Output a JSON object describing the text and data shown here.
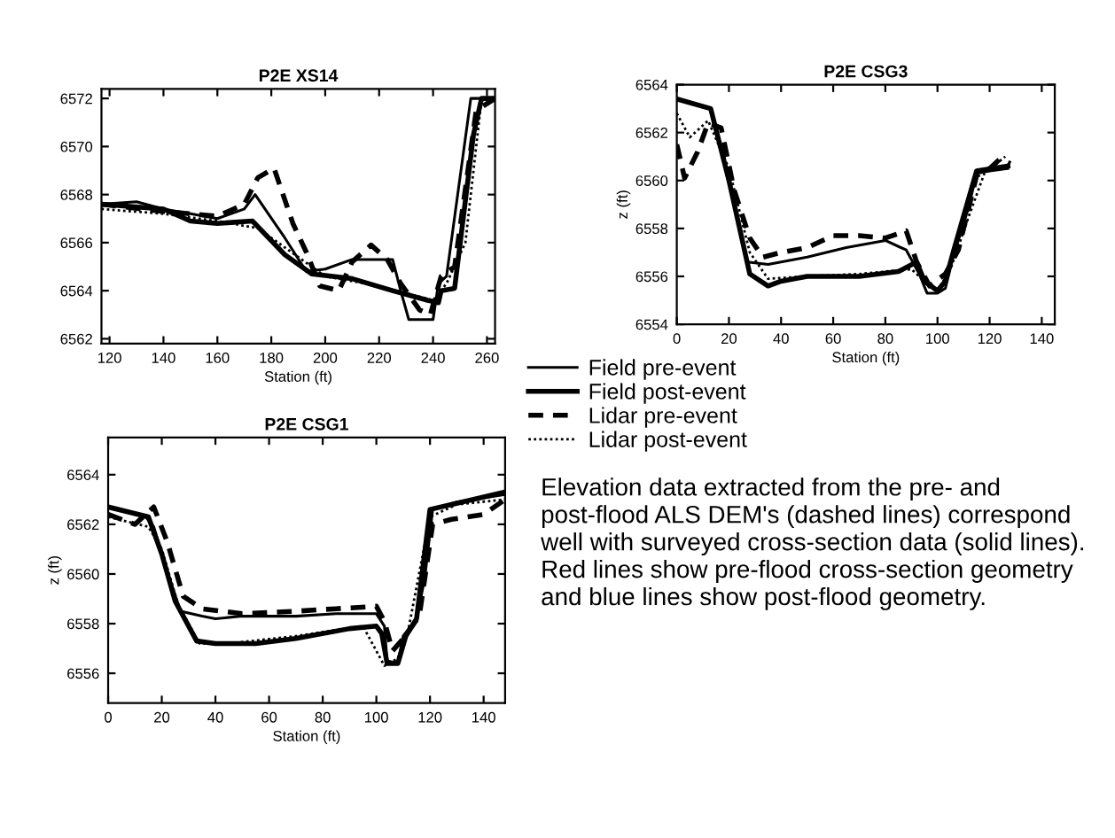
{
  "chart_data": [
    {
      "type": "line",
      "title": "P2E XS14",
      "xlabel": "Station (ft)",
      "xlim": [
        117,
        263
      ],
      "xticks": [
        120,
        140,
        160,
        180,
        200,
        220,
        240,
        260
      ],
      "ylim": [
        6561.8,
        6572.4
      ],
      "yticks": [
        6562,
        6564,
        6566,
        6568,
        6570,
        6572
      ],
      "grid": false,
      "legend": false,
      "series": [
        {
          "color": "#000000",
          "line_style": "solid",
          "x": [
            117,
            130,
            140,
            150,
            160,
            170,
            174,
            185,
            193,
            200,
            210,
            220,
            225,
            228,
            231,
            240,
            242,
            245,
            254,
            263
          ],
          "values": [
            6567.6,
            6567.7,
            6567.4,
            6567.2,
            6567.0,
            6567.4,
            6568.0,
            6566.2,
            6564.8,
            6564.9,
            6565.3,
            6565.3,
            6565.3,
            6564.0,
            6562.8,
            6562.8,
            6564.3,
            6564.6,
            6572,
            6572
          ]
        },
        {
          "color": "#000000",
          "line_style": "solid",
          "x": [
            117,
            140,
            150,
            160,
            173,
            185,
            195,
            210,
            225,
            238,
            242,
            243,
            248,
            255,
            258,
            263
          ],
          "values": [
            6567.6,
            6567.4,
            6566.9,
            6566.8,
            6566.9,
            6565.5,
            6564.7,
            6564.5,
            6564.0,
            6563.6,
            6563.5,
            6564.0,
            6564.1,
            6570.5,
            6572,
            6572
          ]
        },
        {
          "color": "#000000",
          "line_style": "dashed",
          "x": [
            117,
            140,
            160,
            170,
            175,
            181,
            188,
            193,
            198,
            205,
            210,
            217,
            223,
            228,
            235,
            239,
            243,
            248,
            256,
            263
          ],
          "values": [
            6567.6,
            6567.3,
            6567.1,
            6567.6,
            6568.7,
            6569.1,
            6566.8,
            6565.6,
            6564.2,
            6564.0,
            6565.2,
            6565.9,
            6565.3,
            6564.3,
            6563.2,
            6563.0,
            6564.6,
            6565.0,
            6571.5,
            6572
          ]
        },
        {
          "color": "#000000",
          "line_style": "dotted",
          "x": [
            117,
            140,
            160,
            175,
            190,
            200,
            215,
            230,
            240,
            245,
            252,
            258,
            263
          ],
          "values": [
            6567.4,
            6567.2,
            6566.9,
            6566.6,
            6565.4,
            6564.6,
            6564.3,
            6563.9,
            6563.6,
            6564.3,
            6566.0,
            6572,
            6572
          ]
        }
      ]
    },
    {
      "type": "line",
      "title": "P2E CSG3",
      "xlabel": "Station (ft)",
      "ylabel": "z (ft)",
      "xlim": [
        0,
        145
      ],
      "xticks": [
        0,
        20,
        40,
        60,
        80,
        100,
        120,
        140
      ],
      "ylim": [
        6554,
        6564
      ],
      "yticks": [
        6554,
        6556,
        6558,
        6560,
        6562,
        6564
      ],
      "grid": false,
      "legend": "bottom",
      "annotations": [
        "Elevation data extracted from the pre- and post-flood ALS DEM's (dashed lines) correspond well with surveyed cross-section data (solid lines).  Red lines show pre-flood cross-section geometry and blue lines show post-flood geometry."
      ],
      "series": [
        {
          "name": "Field pre-event",
          "color": "#000000",
          "line_style": "solid",
          "x": [
            0,
            13,
            20,
            27,
            35,
            40,
            50,
            65,
            80,
            88,
            93,
            96,
            100,
            103,
            106,
            112,
            115,
            120,
            127
          ],
          "values": [
            6563.4,
            6563.0,
            6559.9,
            6556.6,
            6556.5,
            6556.6,
            6556.8,
            6557.2,
            6557.5,
            6557.1,
            6556.1,
            6555.3,
            6555.3,
            6555.5,
            6556.8,
            6558.9,
            6560.3,
            6560.4,
            6560.5
          ]
        },
        {
          "name": "Field post-event",
          "color": "#000000",
          "line_style": "solid",
          "x": [
            0,
            13,
            20,
            28,
            35,
            40,
            50,
            70,
            85,
            92,
            95,
            100,
            103,
            106,
            115,
            127
          ],
          "values": [
            6563.4,
            6563.0,
            6560.0,
            6556.1,
            6555.6,
            6555.8,
            6556.0,
            6556.0,
            6556.2,
            6556.6,
            6555.8,
            6555.4,
            6555.8,
            6557.0,
            6560.4,
            6560.6
          ]
        },
        {
          "name": "Lidar pre-event",
          "color": "#000000",
          "line_style": "dashed",
          "x": [
            0,
            3,
            8,
            12,
            17,
            22,
            28,
            33,
            40,
            50,
            60,
            70,
            80,
            88,
            92,
            97,
            103,
            108,
            115,
            120,
            124,
            128
          ],
          "values": [
            6561.5,
            6560.1,
            6561.2,
            6562.4,
            6562.2,
            6559.6,
            6557.6,
            6556.8,
            6557.0,
            6557.2,
            6557.7,
            6557.7,
            6557.6,
            6557.9,
            6556.6,
            6555.6,
            6556.1,
            6557.1,
            6560.2,
            6560.5,
            6560.9,
            6560.7
          ]
        },
        {
          "name": "Lidar post-event",
          "color": "#000000",
          "line_style": "dotted",
          "x": [
            0,
            5,
            12,
            20,
            28,
            35,
            50,
            70,
            90,
            95,
            100,
            105,
            112,
            118,
            126
          ],
          "values": [
            6562.8,
            6561.8,
            6562.5,
            6560.5,
            6557.0,
            6555.9,
            6556.0,
            6556.1,
            6556.3,
            6555.8,
            6555.4,
            6556.3,
            6558.5,
            6560.3,
            6561.0
          ]
        }
      ]
    },
    {
      "type": "line",
      "title": "P2E CSG1",
      "xlabel": "Station (ft)",
      "ylabel": "z (ft)",
      "xlim": [
        0,
        148
      ],
      "xticks": [
        0,
        20,
        40,
        60,
        80,
        100,
        120,
        140
      ],
      "ylim": [
        6554.8,
        6565.5
      ],
      "yticks": [
        6556,
        6558,
        6560,
        6562,
        6564
      ],
      "grid": false,
      "legend": false,
      "series": [
        {
          "color": "#000000",
          "line_style": "solid",
          "x": [
            0,
            14,
            17,
            22,
            27,
            35,
            40,
            50,
            70,
            85,
            100,
            103,
            104,
            108,
            110,
            115,
            118,
            121,
            130,
            148
          ],
          "values": [
            6562.7,
            6562.3,
            6561.9,
            6560.1,
            6558.5,
            6558.3,
            6558.2,
            6558.3,
            6558.3,
            6558.4,
            6558.4,
            6557.9,
            6556.5,
            6556.4,
            6557.5,
            6558.2,
            6559.8,
            6562.6,
            6562.9,
            6563.2
          ]
        },
        {
          "color": "#000000",
          "line_style": "solid",
          "x": [
            0,
            15,
            20,
            25,
            33,
            40,
            55,
            70,
            90,
            100,
            102,
            104,
            108,
            111,
            115,
            120,
            148
          ],
          "values": [
            6562.7,
            6562.3,
            6560.8,
            6558.9,
            6557.3,
            6557.2,
            6557.2,
            6557.4,
            6557.8,
            6557.9,
            6557.6,
            6556.4,
            6556.4,
            6557.5,
            6558.2,
            6562.6,
            6563.3
          ]
        },
        {
          "color": "#000000",
          "line_style": "dashed",
          "x": [
            0,
            10,
            17,
            22,
            28,
            35,
            50,
            70,
            85,
            100,
            103,
            106,
            110,
            116,
            121,
            128,
            140,
            148
          ],
          "values": [
            6562.4,
            6562.0,
            6562.7,
            6561.3,
            6559.1,
            6558.6,
            6558.4,
            6558.5,
            6558.6,
            6558.7,
            6558.1,
            6556.9,
            6557.4,
            6558.3,
            6562.0,
            6562.2,
            6562.4,
            6563.0
          ]
        },
        {
          "color": "#000000",
          "line_style": "dotted",
          "x": [
            0,
            15,
            20,
            26,
            34,
            45,
            70,
            95,
            103,
            108,
            112,
            120,
            130,
            148
          ],
          "values": [
            6562.3,
            6561.9,
            6561.0,
            6558.8,
            6557.2,
            6557.2,
            6557.5,
            6557.9,
            6556.3,
            6556.6,
            6557.8,
            6562.3,
            6562.8,
            6563.0
          ]
        }
      ]
    }
  ]
}
